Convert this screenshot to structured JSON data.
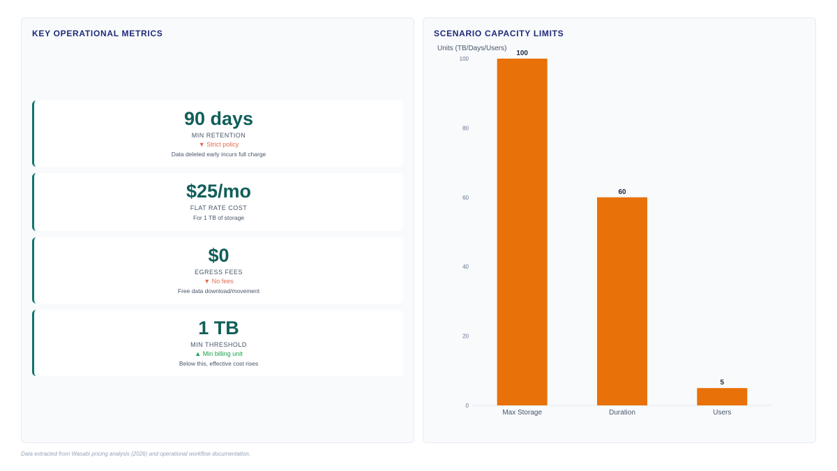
{
  "left_panel": {
    "title": "KEY OPERATIONAL METRICS",
    "metrics": [
      {
        "value": "90 days",
        "label": "MIN RETENTION",
        "trend": "▼ Strict policy",
        "trend_dir": "down",
        "note": "Data deleted early incurs full charge"
      },
      {
        "value": "$25/mo",
        "label": "FLAT RATE COST",
        "trend": "",
        "trend_dir": "",
        "note": "For 1 TB of storage"
      },
      {
        "value": "$0",
        "label": "EGRESS FEES",
        "trend": "▼ No fees",
        "trend_dir": "down",
        "note": "Free data download/movement"
      },
      {
        "value": "1 TB",
        "label": "MIN THRESHOLD",
        "trend": "▲ Min billing unit",
        "trend_dir": "up",
        "note": "Below this, effective cost rises"
      }
    ]
  },
  "right_panel": {
    "title": "SCENARIO CAPACITY LIMITS"
  },
  "chart_data": {
    "type": "bar",
    "title": "SCENARIO CAPACITY LIMITS",
    "ylabel": "Units (TB/Days/Users)",
    "xlabel": "",
    "categories": [
      "Max Storage",
      "Duration",
      "Users"
    ],
    "values": [
      100,
      60,
      5
    ],
    "data_labels": [
      "100",
      "60",
      "5"
    ],
    "ylim": [
      0,
      100
    ],
    "yticks": [
      0,
      20,
      40,
      60,
      80,
      100
    ],
    "grid": false,
    "bar_color": "#e8710a"
  },
  "footnote": "Data extracted from Wasabi pricing analysis (2026) and operational workflow documentation."
}
